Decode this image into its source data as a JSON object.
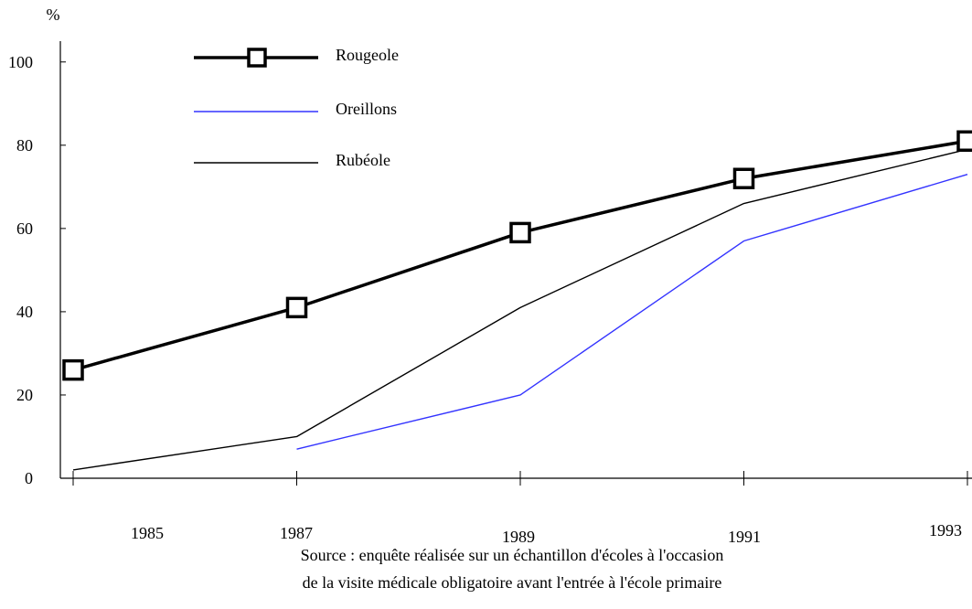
{
  "chart_data": {
    "type": "line",
    "ylabel": "%",
    "ylim": [
      0,
      105
    ],
    "yticks": [
      0,
      20,
      40,
      60,
      80,
      100
    ],
    "x_ticks": [
      1985,
      1987,
      1989,
      1991,
      1993
    ],
    "x_tick_labels": [
      "1985",
      "1987",
      "1989",
      "1991",
      "1993"
    ],
    "legend_position": "top-left",
    "series": [
      {
        "name": "Rougeole",
        "color": "#000000",
        "marker": "square",
        "x": [
          1985,
          1987,
          1989,
          1991,
          1993
        ],
        "y": [
          26,
          41,
          59,
          72,
          81
        ]
      },
      {
        "name": "Oreillons",
        "color": "#3333ff",
        "marker": "none",
        "x": [
          1987,
          1989,
          1991,
          1993
        ],
        "y": [
          7,
          20,
          57,
          73
        ]
      },
      {
        "name": "Rubéole",
        "color": "#000000",
        "marker": "none",
        "x": [
          1985,
          1987,
          1989,
          1991,
          1993
        ],
        "y": [
          2,
          10,
          41,
          66,
          79
        ]
      }
    ]
  },
  "source_note": {
    "line1": "Source : enquête réalisée sur un échantillon d'écoles à l'occasion",
    "line2": "de la visite médicale obligatoire avant l'entrée à l'école primaire"
  }
}
